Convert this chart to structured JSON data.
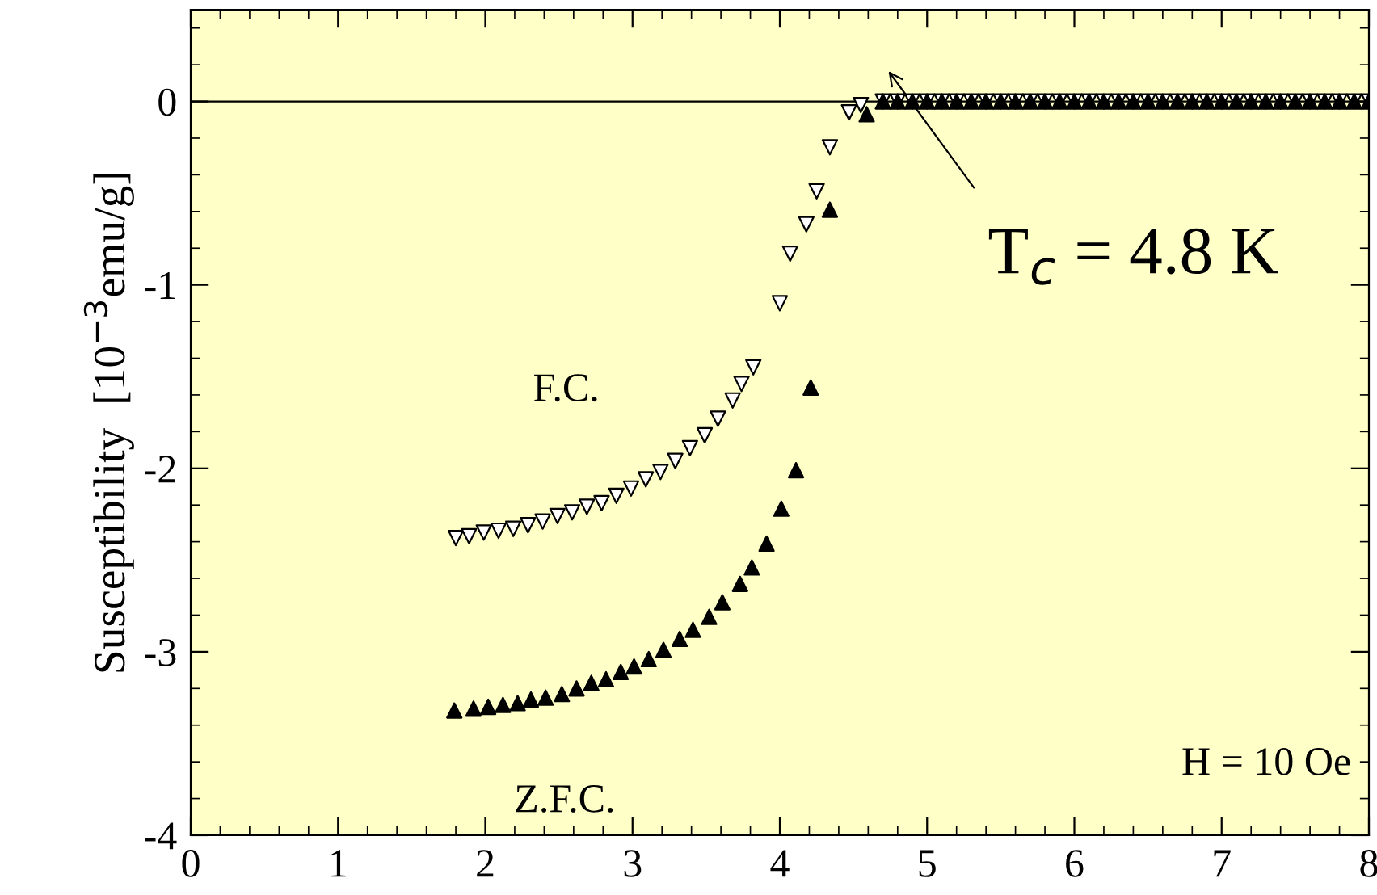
{
  "chart_data": {
    "type": "scatter",
    "ylabel": "Susceptibility  [10$^{−3}$emu/g]",
    "xlim": [
      0,
      8
    ],
    "ylim": [
      -4,
      0.5
    ],
    "xticks": [
      0,
      1,
      2,
      3,
      4,
      5,
      6,
      7,
      8
    ],
    "yticks": [
      -4,
      -3,
      -2,
      -1,
      0
    ],
    "grid": false,
    "legend": false,
    "ref_lines": [
      {
        "axis": "y",
        "value": 0,
        "color": "#000000",
        "line_style": "solid"
      }
    ],
    "annotations": [
      "T$_{c}$ = 4.8 K",
      "H = 10 Oe"
    ],
    "series": [
      {
        "name": "F.C.",
        "color": "#ffffff",
        "marker": "triangle_down",
        "x": [
          1.8,
          1.89,
          1.99,
          2.09,
          2.19,
          2.29,
          2.39,
          2.49,
          2.59,
          2.69,
          2.79,
          2.89,
          2.99,
          3.09,
          3.19,
          3.29,
          3.39,
          3.49,
          3.58,
          3.68,
          3.74,
          3.82,
          4.0,
          4.07,
          4.18,
          4.25,
          4.34,
          4.47,
          4.55,
          4.7,
          4.8,
          4.9,
          5.0,
          5.1,
          5.2,
          5.3,
          5.4,
          5.5,
          5.6,
          5.7,
          5.8,
          5.9,
          6.0,
          6.1,
          6.2,
          6.3,
          6.4,
          6.5,
          6.6,
          6.7,
          6.8,
          6.9,
          7.0,
          7.1,
          7.2,
          7.3,
          7.4,
          7.5,
          7.6,
          7.7,
          7.8,
          7.9,
          8.0
        ],
        "values": [
          -2.38,
          -2.37,
          -2.35,
          -2.34,
          -2.33,
          -2.31,
          -2.29,
          -2.26,
          -2.24,
          -2.21,
          -2.19,
          -2.15,
          -2.11,
          -2.06,
          -2.02,
          -1.96,
          -1.89,
          -1.82,
          -1.73,
          -1.63,
          -1.54,
          -1.45,
          -1.1,
          -0.83,
          -0.67,
          -0.49,
          -0.25,
          -0.06,
          -0.02,
          0,
          0,
          0,
          0,
          0,
          0,
          0,
          0,
          0,
          0,
          0,
          0,
          0,
          0,
          0,
          0,
          0,
          0,
          0,
          0,
          0,
          0,
          0,
          0,
          0,
          0,
          0,
          0,
          0,
          0,
          0,
          0,
          0,
          0
        ]
      },
      {
        "name": "Z.F.C.",
        "color": "#000000",
        "marker": "triangle",
        "x": [
          1.79,
          1.92,
          2.02,
          2.12,
          2.22,
          2.31,
          2.41,
          2.52,
          2.62,
          2.72,
          2.82,
          2.92,
          3.01,
          3.11,
          3.21,
          3.32,
          3.41,
          3.52,
          3.61,
          3.73,
          3.81,
          3.91,
          4.01,
          4.11,
          4.21,
          4.34,
          4.59,
          4.7,
          4.8,
          4.9,
          5.0,
          5.1,
          5.2,
          5.3,
          5.4,
          5.5,
          5.6,
          5.7,
          5.8,
          5.9,
          6.0,
          6.1,
          6.2,
          6.3,
          6.4,
          6.5,
          6.6,
          6.7,
          6.8,
          6.9,
          7.0,
          7.1,
          7.2,
          7.3,
          7.4,
          7.5,
          7.6,
          7.7,
          7.8,
          7.9,
          8.0
        ],
        "values": [
          -3.32,
          -3.31,
          -3.3,
          -3.29,
          -3.28,
          -3.26,
          -3.25,
          -3.23,
          -3.2,
          -3.17,
          -3.15,
          -3.11,
          -3.08,
          -3.04,
          -2.99,
          -2.93,
          -2.88,
          -2.81,
          -2.73,
          -2.63,
          -2.54,
          -2.41,
          -2.22,
          -2.01,
          -1.56,
          -0.59,
          -0.07,
          0,
          0,
          0,
          0,
          0,
          0,
          0,
          0,
          0,
          0,
          0,
          0,
          0,
          0,
          0,
          0,
          0,
          0,
          0,
          0,
          0,
          0,
          0,
          0,
          0,
          0,
          0,
          0,
          0,
          0,
          0,
          0,
          0,
          0
        ]
      }
    ]
  }
}
